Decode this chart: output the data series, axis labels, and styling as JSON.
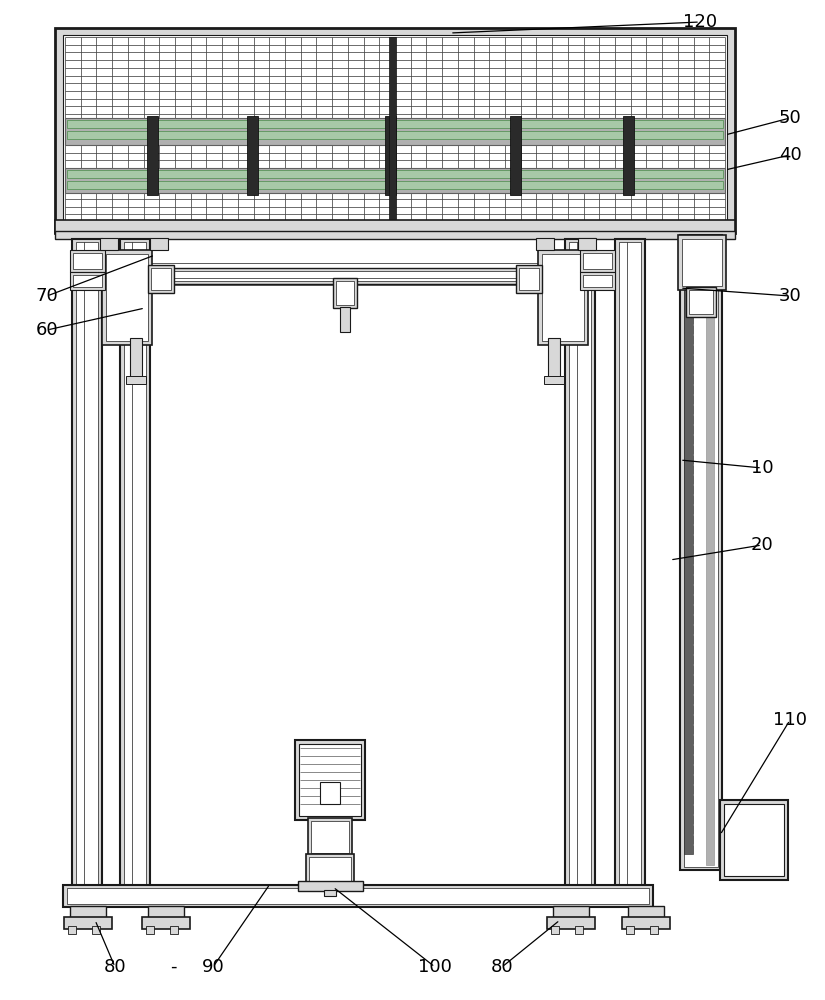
{
  "bg_color": "#ffffff",
  "lc": "#1a1a1a",
  "lg": "#d8d8d8",
  "mg": "#b0b0b0",
  "dg": "#606060",
  "green_rail": "#a8c8a8",
  "green_ec": "#4a8a4a"
}
